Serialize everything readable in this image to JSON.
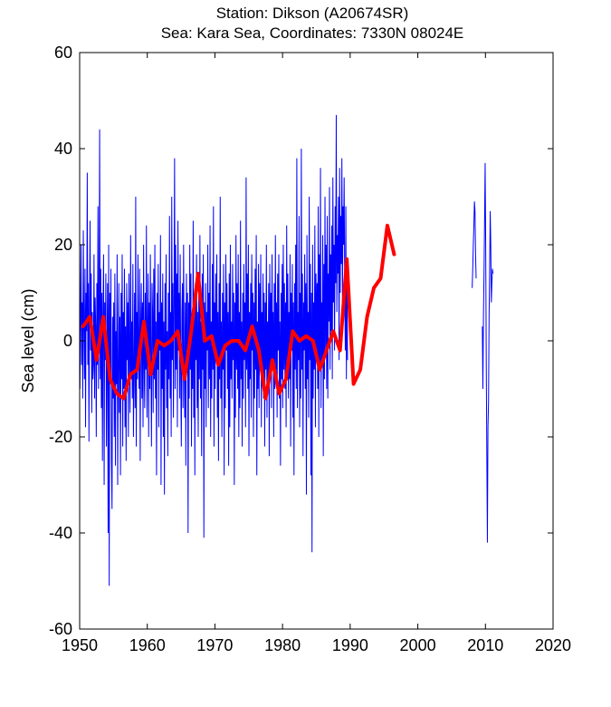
{
  "chart_data": {
    "type": "line",
    "title": "Station: Dikson   (A20674SR)",
    "subtitle": "Sea: Kara Sea, Coordinates: 7330N 08024E",
    "xlabel": "",
    "ylabel": "Sea level (cm)",
    "xlim": [
      1950,
      2020
    ],
    "ylim": [
      -60,
      60
    ],
    "xticks": [
      1950,
      1960,
      1970,
      1980,
      1990,
      2000,
      2010,
      2020
    ],
    "yticks": [
      -60,
      -40,
      -20,
      0,
      20,
      40,
      60
    ],
    "grid": false,
    "series": [
      {
        "kind": "monthly",
        "color": "#0000ff",
        "segments": [
          {
            "start": 1950.04,
            "step": 0.0833,
            "values": [
              -10,
              5,
              20,
              -5,
              8,
              -12,
              23,
              3,
              -8,
              15,
              -18,
              10,
              2,
              35,
              -5,
              12,
              -21,
              8,
              25,
              -2,
              14,
              -15,
              6,
              -8,
              -5,
              18,
              -12,
              9,
              3,
              -20,
              12,
              -5,
              28,
              -10,
              5,
              44,
              -8,
              15,
              -14,
              10,
              -25,
              6,
              18,
              -30,
              8,
              -4,
              14,
              -22,
              -3,
              12,
              -40,
              20,
              -51,
              10,
              -8,
              15,
              -25,
              -35,
              5,
              -12,
              8,
              -20,
              14,
              -26,
              2,
              -9,
              18,
              -30,
              -6,
              12,
              -15,
              5,
              -28,
              10,
              -8,
              18,
              -22,
              6,
              -10,
              15,
              -18,
              3,
              -25,
              12,
              -4,
              8,
              -20,
              14,
              -2,
              -15,
              22,
              -8,
              4,
              -12,
              16,
              -20,
              -6,
              10,
              -14,
              30,
              -22,
              6,
              -8,
              18,
              -2,
              -10,
              15,
              -25,
              4,
              12,
              -12,
              8,
              -18,
              20,
              -5,
              -14,
              10,
              -6,
              24,
              -16,
              2,
              14,
              -20,
              8,
              -10,
              18,
              -4,
              -22,
              12,
              6,
              -15,
              15,
              -8,
              20,
              -12,
              4,
              -28,
              10,
              -6,
              16,
              -18,
              6,
              -2,
              22,
              -30,
              8,
              -10,
              14,
              -20,
              4,
              -32,
              12,
              -6,
              18,
              -14,
              2,
              -24,
              10,
              -8,
              26,
              -12,
              6,
              -20,
              30,
              -4,
              12,
              -16,
              8,
              38,
              -10,
              20,
              -6,
              14,
              -18,
              25,
              -2,
              10,
              -12,
              18,
              -8,
              -22,
              6,
              12,
              -14,
              20,
              -4,
              -16,
              8,
              -26,
              14,
              -2,
              10,
              -40,
              8,
              -12,
              20,
              -6,
              14,
              -22,
              4,
              -10,
              25,
              -16,
              8,
              -28,
              12,
              -4,
              18,
              -14,
              6,
              -20,
              10,
              -8,
              22,
              -12,
              4,
              -24,
              14,
              -6,
              18,
              -41,
              8,
              -10,
              12,
              -18,
              6,
              -2,
              20,
              -14,
              10,
              -8,
              24,
              -20,
              4,
              -12,
              16,
              -6,
              28,
              -22,
              8,
              -10,
              14,
              -4,
              18,
              -16,
              6,
              -25,
              12,
              -8,
              30,
              -12,
              4,
              -20,
              10,
              -6,
              16,
              -28,
              8,
              -14,
              18,
              -2,
              12,
              -10,
              6,
              -26,
              14,
              -18,
              20,
              -8,
              4,
              -12,
              16,
              -4,
              10,
              -30,
              8,
              -16,
              22,
              -6,
              12,
              -10,
              18,
              -20,
              6,
              -14,
              25,
              -8,
              4,
              -22,
              10,
              -12,
              16,
              -4,
              8,
              -18,
              34,
              -6,
              14,
              -10,
              20,
              -24,
              6,
              -8,
              12,
              -16,
              18,
              -2,
              10,
              -20,
              8,
              -12,
              15,
              -6,
              22,
              -28,
              4,
              -10,
              16,
              -14,
              12,
              -4,
              18,
              -18,
              6,
              -8,
              14,
              -12,
              10,
              -22,
              8,
              -6,
              20,
              -16,
              4,
              -10,
              12,
              -24,
              16,
              -8,
              10,
              -14,
              18,
              -4,
              6,
              -20,
              12,
              -10,
              22,
              -6,
              8,
              -16,
              14,
              -2,
              18,
              -12,
              4,
              -26,
              10,
              -8,
              16,
              -14,
              20,
              -6,
              12,
              -10,
              8,
              -18,
              24,
              -4,
              14,
              -12,
              6,
              -8,
              18,
              -22,
              10,
              -2,
              16,
              -16,
              8,
              -28,
              12,
              -6,
              20,
              -10,
              38,
              -14,
              6,
              -4,
              26,
              -18,
              10,
              -12,
              40,
              -6,
              14,
              -24,
              8,
              -2,
              18,
              -10,
              12,
              -32,
              22,
              -8,
              6,
              -16,
              30,
              -4,
              16,
              -28,
              10,
              -44,
              20,
              -12,
              8,
              -6,
              24,
              -18,
              14,
              -2,
              12,
              -10,
              28,
              -20,
              18,
              -6,
              36,
              -14,
              8,
              -4,
              22,
              -24,
              16,
              -8,
              30,
              -2,
              20,
              -10,
              26,
              -12,
              14,
              4,
              32,
              -6,
              18,
              2,
              24,
              -8,
              34,
              8,
              20,
              -2,
              28,
              12,
              47,
              6,
              22,
              14,
              30,
              -4,
              36,
              10,
              26,
              16,
              38,
              8,
              28,
              20,
              34,
              12,
              -2,
              28,
              -8,
              16,
              -4
            ]
          },
          {
            "start": 2008.04,
            "step": 0.0833,
            "values": [
              11,
              15,
              20,
              24,
              29,
              27,
              18,
              13
            ]
          },
          {
            "start": 2009.54,
            "step": 0.0833,
            "values": [
              3,
              -10,
              5,
              14,
              25,
              37,
              20,
              -5,
              -24,
              -42,
              -18,
              -13,
              5,
              15,
              27,
              20,
              8,
              12,
              15,
              14
            ]
          }
        ]
      },
      {
        "kind": "annual",
        "color": "#ff0000",
        "x": [
          1950.5,
          1951.5,
          1952.5,
          1953.5,
          1954.5,
          1955.5,
          1956.5,
          1957.5,
          1958.5,
          1959.5,
          1960.5,
          1961.5,
          1962.5,
          1963.5,
          1964.5,
          1965.5,
          1966.5,
          1967.5,
          1968.5,
          1969.5,
          1970.5,
          1971.5,
          1972.5,
          1973.5,
          1974.5,
          1975.5,
          1976.5,
          1977.5,
          1978.5,
          1979.5,
          1980.5,
          1981.5,
          1982.5,
          1983.5,
          1984.5,
          1985.5,
          1986.5,
          1987.5,
          1988.5,
          1989.5,
          1990.5,
          1991.5,
          1992.5,
          1993.5,
          1994.5,
          1995.5,
          1996.5
        ],
        "y": [
          3,
          5,
          -4,
          5,
          -8,
          -11,
          -12,
          -7,
          -6,
          4,
          -7,
          0,
          -1,
          0,
          2,
          -8,
          2,
          14,
          0,
          1,
          -5,
          -1,
          0,
          0,
          -2,
          3,
          -2,
          -12,
          -4,
          -11,
          -8,
          2,
          0,
          1,
          0,
          -6,
          -2,
          2,
          -2,
          17,
          -9,
          -6,
          5,
          11,
          13,
          24,
          18
        ]
      }
    ]
  }
}
